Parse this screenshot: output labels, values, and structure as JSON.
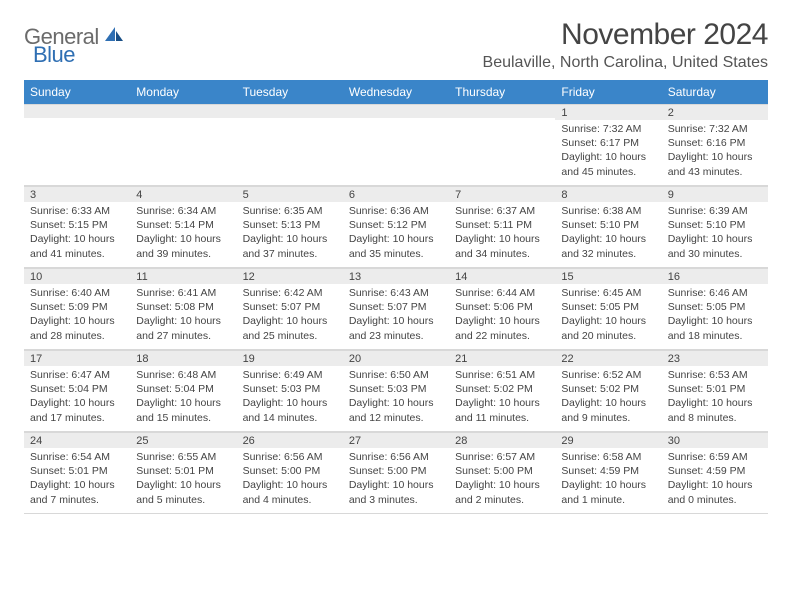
{
  "brand": {
    "name_a": "General",
    "name_b": "Blue"
  },
  "title": "November 2024",
  "location": "Beulaville, North Carolina, United States",
  "colors": {
    "header_bg": "#3a85c9",
    "header_text": "#ffffff",
    "daynum_bg": "#ececec",
    "body_text": "#444444",
    "brand_gray": "#6b6b6b",
    "brand_blue": "#2f6fb3"
  },
  "day_names": [
    "Sunday",
    "Monday",
    "Tuesday",
    "Wednesday",
    "Thursday",
    "Friday",
    "Saturday"
  ],
  "first_weekday_index": 5,
  "days": [
    {
      "n": 1,
      "sunrise": "Sunrise: 7:32 AM",
      "sunset": "Sunset: 6:17 PM",
      "daylight": "Daylight: 10 hours and 45 minutes."
    },
    {
      "n": 2,
      "sunrise": "Sunrise: 7:32 AM",
      "sunset": "Sunset: 6:16 PM",
      "daylight": "Daylight: 10 hours and 43 minutes."
    },
    {
      "n": 3,
      "sunrise": "Sunrise: 6:33 AM",
      "sunset": "Sunset: 5:15 PM",
      "daylight": "Daylight: 10 hours and 41 minutes."
    },
    {
      "n": 4,
      "sunrise": "Sunrise: 6:34 AM",
      "sunset": "Sunset: 5:14 PM",
      "daylight": "Daylight: 10 hours and 39 minutes."
    },
    {
      "n": 5,
      "sunrise": "Sunrise: 6:35 AM",
      "sunset": "Sunset: 5:13 PM",
      "daylight": "Daylight: 10 hours and 37 minutes."
    },
    {
      "n": 6,
      "sunrise": "Sunrise: 6:36 AM",
      "sunset": "Sunset: 5:12 PM",
      "daylight": "Daylight: 10 hours and 35 minutes."
    },
    {
      "n": 7,
      "sunrise": "Sunrise: 6:37 AM",
      "sunset": "Sunset: 5:11 PM",
      "daylight": "Daylight: 10 hours and 34 minutes."
    },
    {
      "n": 8,
      "sunrise": "Sunrise: 6:38 AM",
      "sunset": "Sunset: 5:10 PM",
      "daylight": "Daylight: 10 hours and 32 minutes."
    },
    {
      "n": 9,
      "sunrise": "Sunrise: 6:39 AM",
      "sunset": "Sunset: 5:10 PM",
      "daylight": "Daylight: 10 hours and 30 minutes."
    },
    {
      "n": 10,
      "sunrise": "Sunrise: 6:40 AM",
      "sunset": "Sunset: 5:09 PM",
      "daylight": "Daylight: 10 hours and 28 minutes."
    },
    {
      "n": 11,
      "sunrise": "Sunrise: 6:41 AM",
      "sunset": "Sunset: 5:08 PM",
      "daylight": "Daylight: 10 hours and 27 minutes."
    },
    {
      "n": 12,
      "sunrise": "Sunrise: 6:42 AM",
      "sunset": "Sunset: 5:07 PM",
      "daylight": "Daylight: 10 hours and 25 minutes."
    },
    {
      "n": 13,
      "sunrise": "Sunrise: 6:43 AM",
      "sunset": "Sunset: 5:07 PM",
      "daylight": "Daylight: 10 hours and 23 minutes."
    },
    {
      "n": 14,
      "sunrise": "Sunrise: 6:44 AM",
      "sunset": "Sunset: 5:06 PM",
      "daylight": "Daylight: 10 hours and 22 minutes."
    },
    {
      "n": 15,
      "sunrise": "Sunrise: 6:45 AM",
      "sunset": "Sunset: 5:05 PM",
      "daylight": "Daylight: 10 hours and 20 minutes."
    },
    {
      "n": 16,
      "sunrise": "Sunrise: 6:46 AM",
      "sunset": "Sunset: 5:05 PM",
      "daylight": "Daylight: 10 hours and 18 minutes."
    },
    {
      "n": 17,
      "sunrise": "Sunrise: 6:47 AM",
      "sunset": "Sunset: 5:04 PM",
      "daylight": "Daylight: 10 hours and 17 minutes."
    },
    {
      "n": 18,
      "sunrise": "Sunrise: 6:48 AM",
      "sunset": "Sunset: 5:04 PM",
      "daylight": "Daylight: 10 hours and 15 minutes."
    },
    {
      "n": 19,
      "sunrise": "Sunrise: 6:49 AM",
      "sunset": "Sunset: 5:03 PM",
      "daylight": "Daylight: 10 hours and 14 minutes."
    },
    {
      "n": 20,
      "sunrise": "Sunrise: 6:50 AM",
      "sunset": "Sunset: 5:03 PM",
      "daylight": "Daylight: 10 hours and 12 minutes."
    },
    {
      "n": 21,
      "sunrise": "Sunrise: 6:51 AM",
      "sunset": "Sunset: 5:02 PM",
      "daylight": "Daylight: 10 hours and 11 minutes."
    },
    {
      "n": 22,
      "sunrise": "Sunrise: 6:52 AM",
      "sunset": "Sunset: 5:02 PM",
      "daylight": "Daylight: 10 hours and 9 minutes."
    },
    {
      "n": 23,
      "sunrise": "Sunrise: 6:53 AM",
      "sunset": "Sunset: 5:01 PM",
      "daylight": "Daylight: 10 hours and 8 minutes."
    },
    {
      "n": 24,
      "sunrise": "Sunrise: 6:54 AM",
      "sunset": "Sunset: 5:01 PM",
      "daylight": "Daylight: 10 hours and 7 minutes."
    },
    {
      "n": 25,
      "sunrise": "Sunrise: 6:55 AM",
      "sunset": "Sunset: 5:01 PM",
      "daylight": "Daylight: 10 hours and 5 minutes."
    },
    {
      "n": 26,
      "sunrise": "Sunrise: 6:56 AM",
      "sunset": "Sunset: 5:00 PM",
      "daylight": "Daylight: 10 hours and 4 minutes."
    },
    {
      "n": 27,
      "sunrise": "Sunrise: 6:56 AM",
      "sunset": "Sunset: 5:00 PM",
      "daylight": "Daylight: 10 hours and 3 minutes."
    },
    {
      "n": 28,
      "sunrise": "Sunrise: 6:57 AM",
      "sunset": "Sunset: 5:00 PM",
      "daylight": "Daylight: 10 hours and 2 minutes."
    },
    {
      "n": 29,
      "sunrise": "Sunrise: 6:58 AM",
      "sunset": "Sunset: 4:59 PM",
      "daylight": "Daylight: 10 hours and 1 minute."
    },
    {
      "n": 30,
      "sunrise": "Sunrise: 6:59 AM",
      "sunset": "Sunset: 4:59 PM",
      "daylight": "Daylight: 10 hours and 0 minutes."
    }
  ]
}
